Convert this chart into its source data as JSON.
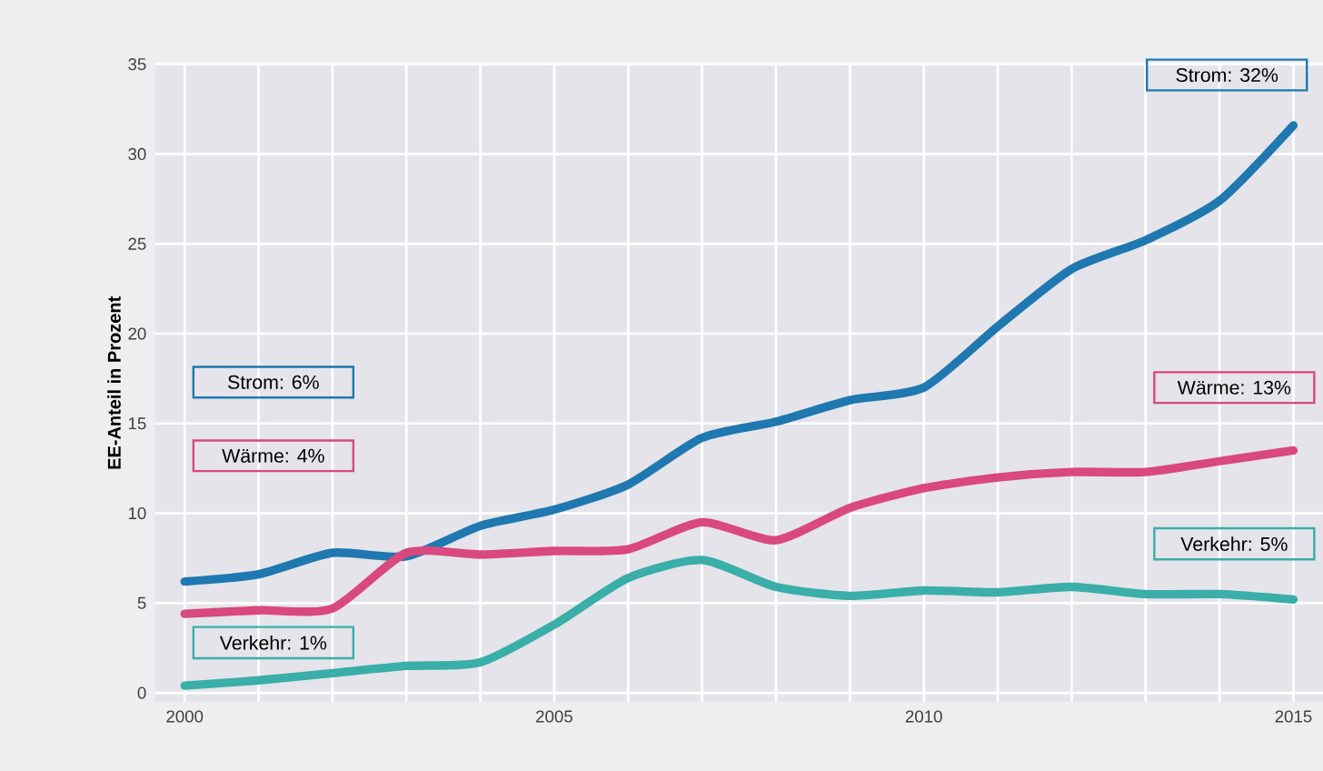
{
  "chart_data": {
    "type": "line",
    "ylabel": "EE-Anteil in Prozent",
    "x": [
      2000,
      2001,
      2002,
      2003,
      2004,
      2005,
      2006,
      2007,
      2008,
      2009,
      2010,
      2011,
      2012,
      2013,
      2014,
      2015
    ],
    "series": [
      {
        "color": "#1f78b0",
        "values": [
          6.2,
          6.6,
          7.8,
          7.6,
          9.3,
          10.2,
          11.6,
          14.2,
          15.1,
          16.3,
          17.0,
          20.4,
          23.6,
          25.2,
          27.4,
          31.6
        ]
      },
      {
        "color": "#d9487f",
        "values": [
          4.4,
          4.6,
          4.7,
          7.8,
          7.7,
          7.9,
          8.0,
          9.5,
          8.5,
          10.3,
          11.4,
          12.0,
          12.3,
          12.3,
          12.9,
          13.5
        ]
      },
      {
        "color": "#3aaea8",
        "values": [
          0.4,
          0.7,
          1.1,
          1.5,
          1.7,
          3.8,
          6.4,
          7.4,
          5.9,
          5.4,
          5.7,
          5.6,
          5.9,
          5.5,
          5.5,
          5.2
        ]
      }
    ],
    "xlim": [
      1999.6,
      2015.4
    ],
    "ylim": [
      -0.5,
      35
    ],
    "xticks": [
      2000,
      {
        "value": 2001,
        "label": null
      },
      {
        "value": 2002,
        "label": null
      },
      {
        "value": 2003,
        "label": null
      },
      {
        "value": 2004,
        "label": null
      },
      2005,
      {
        "value": 2006,
        "label": null
      },
      {
        "value": 2007,
        "label": null
      },
      {
        "value": 2008,
        "label": null
      },
      {
        "value": 2009,
        "label": null
      },
      2010,
      {
        "value": 2011,
        "label": null
      },
      {
        "value": 2012,
        "label": null
      },
      {
        "value": 2013,
        "label": null
      },
      {
        "value": 2014,
        "label": null
      },
      2015
    ],
    "yticks": [
      0,
      5,
      10,
      15,
      20,
      25,
      30,
      35
    ],
    "grid": true,
    "marker": "none",
    "line_style": "solid",
    "annotations": [
      "Strom: 6%",
      "Wärme: 4%",
      "Verkehr: 1%",
      "Strom: 32%",
      "Wärme: 13%",
      "Verkehr: 5%"
    ]
  }
}
